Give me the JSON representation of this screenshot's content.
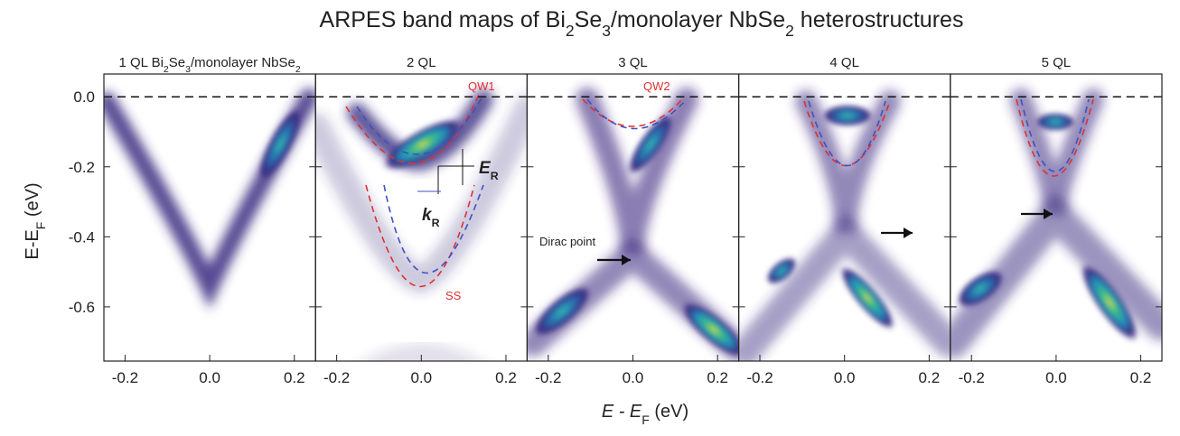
{
  "title_parts": [
    "ARPES band maps of Bi",
    "2",
    "Se",
    "3",
    "/monolayer NbSe",
    "2",
    " heterostructures"
  ],
  "y_axis_label_parts": [
    "E-E",
    "F",
    " (eV)"
  ],
  "x_axis_label_parts": [
    "E",
    " - E",
    "F",
    " (eV)"
  ],
  "ylim": [
    -0.755,
    0.065
  ],
  "yticks": [
    {
      "value": 0,
      "label": "0.0"
    },
    {
      "value": -0.2,
      "label": "-0.2"
    },
    {
      "value": -0.4,
      "label": "-0.4"
    },
    {
      "value": -0.6,
      "label": "-0.6"
    }
  ],
  "xlim": [
    -0.25,
    0.25
  ],
  "xticks": [
    {
      "value": -0.2,
      "label": "-0.2"
    },
    {
      "value": 0,
      "label": "0.0"
    },
    {
      "value": 0.2,
      "label": "0.2"
    }
  ],
  "panels": [
    {
      "label_parts": [
        "1 QL Bi",
        "2",
        "Se",
        "3",
        "/monolayer NbSe",
        "2"
      ],
      "annotations": []
    },
    {
      "label_parts": [
        "2 QL"
      ],
      "annotations": [
        "QW1",
        "SS",
        "E",
        "R",
        "k",
        "R"
      ]
    },
    {
      "label_parts": [
        "3 QL"
      ],
      "annotations": [
        "QW2",
        "Dirac point"
      ]
    },
    {
      "label_parts": [
        "4 QL"
      ],
      "annotations": []
    },
    {
      "label_parts": [
        "5 QL"
      ],
      "annotations": []
    }
  ]
}
